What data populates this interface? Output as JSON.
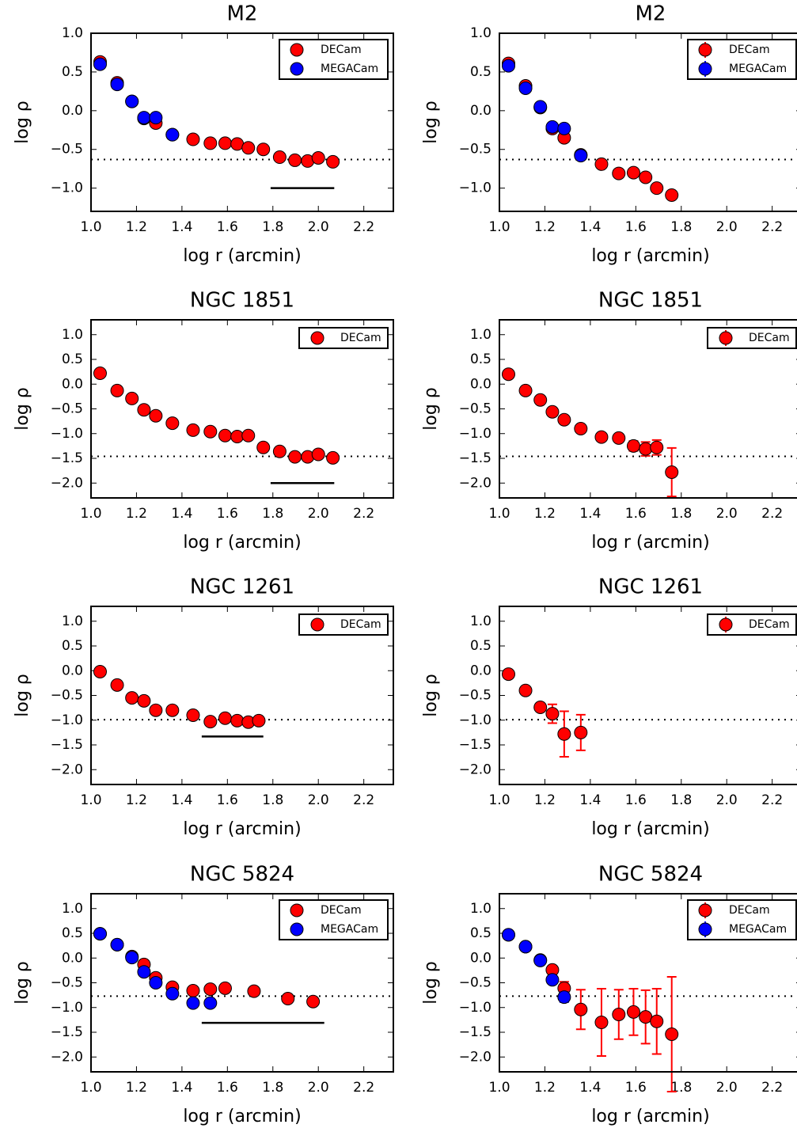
{
  "chart_data": [
    {
      "type": "scatter",
      "title": "M2",
      "xlabel": "log r (arcmin)",
      "ylabel": "log ρ",
      "xlim": [
        1.0,
        2.33
      ],
      "ylim": [
        -1.3,
        1.0
      ],
      "xticks": [
        {
          "value": 1,
          "label": "1.0"
        },
        {
          "value": 1.2,
          "label": "1.2"
        },
        {
          "value": 1.4,
          "label": "1.4"
        },
        {
          "value": 1.6,
          "label": "1.6"
        },
        {
          "value": 1.8,
          "label": "1.8"
        },
        {
          "value": 2,
          "label": "2.0"
        },
        {
          "value": 2.2,
          "label": "2.2"
        }
      ],
      "yticks": [
        {
          "value": 1,
          "label": "1.0"
        },
        {
          "value": 0.5,
          "label": "0.5"
        },
        {
          "value": 0,
          "label": "0.0"
        },
        {
          "value": -0.5,
          "label": "−0.5"
        },
        {
          "value": -1,
          "label": "−1.0"
        }
      ],
      "hline": -0.63,
      "segment": {
        "x": [
          1.79,
          2.07
        ],
        "y": -1.0
      },
      "legend": "upper right",
      "series": [
        {
          "name": "DECam",
          "color": "#ff0000",
          "x": [
            1.04,
            1.115,
            1.18,
            1.233,
            1.285,
            1.358,
            1.449,
            1.525,
            1.59,
            1.643,
            1.692,
            1.758,
            1.83,
            1.897,
            1.953,
            2.0,
            2.064
          ],
          "values": [
            0.63,
            0.36,
            0.12,
            -0.1,
            -0.16,
            -0.31,
            -0.37,
            -0.42,
            -0.42,
            -0.43,
            -0.48,
            -0.5,
            -0.6,
            -0.64,
            -0.65,
            -0.61,
            -0.66
          ]
        },
        {
          "name": "MEGACam",
          "color": "#0000ff",
          "x": [
            1.04,
            1.115,
            1.18,
            1.233,
            1.285,
            1.358
          ],
          "values": [
            0.6,
            0.34,
            0.12,
            -0.09,
            -0.09,
            -0.31
          ]
        }
      ]
    },
    {
      "type": "scatter",
      "title": "M2",
      "xlabel": "log r (arcmin)",
      "ylabel": "log ρ",
      "xlim": [
        1.0,
        2.33
      ],
      "ylim": [
        -1.3,
        1.0
      ],
      "xticks": [
        {
          "value": 1,
          "label": "1.0"
        },
        {
          "value": 1.2,
          "label": "1.2"
        },
        {
          "value": 1.4,
          "label": "1.4"
        },
        {
          "value": 1.6,
          "label": "1.6"
        },
        {
          "value": 1.8,
          "label": "1.8"
        },
        {
          "value": 2,
          "label": "2.0"
        },
        {
          "value": 2.2,
          "label": "2.2"
        }
      ],
      "yticks": [
        {
          "value": 1,
          "label": "1.0"
        },
        {
          "value": 0.5,
          "label": "0.5"
        },
        {
          "value": 0,
          "label": "0.0"
        },
        {
          "value": -0.5,
          "label": "−0.5"
        },
        {
          "value": -1,
          "label": "−1.0"
        }
      ],
      "hline": -0.63,
      "legend": "upper right",
      "series": [
        {
          "name": "DECam",
          "color": "#ff0000",
          "x": [
            1.04,
            1.115,
            1.18,
            1.233,
            1.285,
            1.358,
            1.449,
            1.525,
            1.59,
            1.643,
            1.692,
            1.758
          ],
          "values": [
            0.61,
            0.32,
            0.04,
            -0.23,
            -0.35,
            -0.57,
            -0.69,
            -0.81,
            -0.8,
            -0.86,
            -1.0,
            -1.09
          ],
          "errors": [
            0.02,
            0.02,
            0.02,
            0.02,
            0.02,
            0.02,
            0.02,
            0.02,
            0.02,
            0.02,
            0.02,
            0.02
          ]
        },
        {
          "name": "MEGACam",
          "color": "#0000ff",
          "x": [
            1.04,
            1.115,
            1.18,
            1.233,
            1.285,
            1.358
          ],
          "values": [
            0.58,
            0.29,
            0.05,
            -0.21,
            -0.23,
            -0.58
          ],
          "errors": [
            0.02,
            0.02,
            0.02,
            0.02,
            0.02,
            0.02
          ]
        }
      ]
    },
    {
      "type": "scatter",
      "title": "NGC 1851",
      "xlabel": "log r (arcmin)",
      "ylabel": "log ρ",
      "xlim": [
        1.0,
        2.33
      ],
      "ylim": [
        -2.3,
        1.3
      ],
      "xticks": [
        {
          "value": 1,
          "label": "1.0"
        },
        {
          "value": 1.2,
          "label": "1.2"
        },
        {
          "value": 1.4,
          "label": "1.4"
        },
        {
          "value": 1.6,
          "label": "1.6"
        },
        {
          "value": 1.8,
          "label": "1.8"
        },
        {
          "value": 2,
          "label": "2.0"
        },
        {
          "value": 2.2,
          "label": "2.2"
        }
      ],
      "yticks": [
        {
          "value": 1,
          "label": "1.0"
        },
        {
          "value": 0.5,
          "label": "0.5"
        },
        {
          "value": 0,
          "label": "0.0"
        },
        {
          "value": -0.5,
          "label": "−0.5"
        },
        {
          "value": -1,
          "label": "−1.0"
        },
        {
          "value": -1.5,
          "label": "−1.5"
        },
        {
          "value": -2,
          "label": "−2.0"
        }
      ],
      "hline": -1.46,
      "segment": {
        "x": [
          1.79,
          2.07
        ],
        "y": -2.0
      },
      "legend": "upper right",
      "series": [
        {
          "name": "DECam",
          "color": "#ff0000",
          "x": [
            1.04,
            1.115,
            1.18,
            1.233,
            1.285,
            1.358,
            1.449,
            1.525,
            1.59,
            1.643,
            1.692,
            1.758,
            1.83,
            1.897,
            1.953,
            2.0,
            2.064
          ],
          "values": [
            0.22,
            -0.13,
            -0.29,
            -0.52,
            -0.64,
            -0.79,
            -0.93,
            -0.96,
            -1.04,
            -1.06,
            -1.04,
            -1.28,
            -1.36,
            -1.47,
            -1.47,
            -1.42,
            -1.49
          ]
        }
      ]
    },
    {
      "type": "scatter",
      "title": "NGC 1851",
      "xlabel": "log r (arcmin)",
      "ylabel": "log ρ",
      "xlim": [
        1.0,
        2.33
      ],
      "ylim": [
        -2.3,
        1.3
      ],
      "xticks": [
        {
          "value": 1,
          "label": "1.0"
        },
        {
          "value": 1.2,
          "label": "1.2"
        },
        {
          "value": 1.4,
          "label": "1.4"
        },
        {
          "value": 1.6,
          "label": "1.6"
        },
        {
          "value": 1.8,
          "label": "1.8"
        },
        {
          "value": 2,
          "label": "2.0"
        },
        {
          "value": 2.2,
          "label": "2.2"
        }
      ],
      "yticks": [
        {
          "value": 1,
          "label": "1.0"
        },
        {
          "value": 0.5,
          "label": "0.5"
        },
        {
          "value": 0,
          "label": "0.0"
        },
        {
          "value": -0.5,
          "label": "−0.5"
        },
        {
          "value": -1,
          "label": "−1.0"
        },
        {
          "value": -1.5,
          "label": "−1.5"
        },
        {
          "value": -2,
          "label": "−2.0"
        }
      ],
      "hline": -1.46,
      "legend": "upper right",
      "series": [
        {
          "name": "DECam",
          "color": "#ff0000",
          "x": [
            1.04,
            1.115,
            1.18,
            1.233,
            1.285,
            1.358,
            1.449,
            1.525,
            1.59,
            1.643,
            1.692,
            1.758
          ],
          "values": [
            0.2,
            -0.13,
            -0.32,
            -0.56,
            -0.72,
            -0.9,
            -1.07,
            -1.09,
            -1.25,
            -1.31,
            -1.28,
            -1.78
          ],
          "errors": [
            0.02,
            0.02,
            0.02,
            0.02,
            0.02,
            0.02,
            0.03,
            0.05,
            0.1,
            0.14,
            0.15,
            0.49
          ]
        }
      ]
    },
    {
      "type": "scatter",
      "title": "NGC 1261",
      "xlabel": "log r (arcmin)",
      "ylabel": "log ρ",
      "xlim": [
        1.0,
        2.33
      ],
      "ylim": [
        -2.3,
        1.3
      ],
      "xticks": [
        {
          "value": 1,
          "label": "1.0"
        },
        {
          "value": 1.2,
          "label": "1.2"
        },
        {
          "value": 1.4,
          "label": "1.4"
        },
        {
          "value": 1.6,
          "label": "1.6"
        },
        {
          "value": 1.8,
          "label": "1.8"
        },
        {
          "value": 2,
          "label": "2.0"
        },
        {
          "value": 2.2,
          "label": "2.2"
        }
      ],
      "yticks": [
        {
          "value": 1,
          "label": "1.0"
        },
        {
          "value": 0.5,
          "label": "0.5"
        },
        {
          "value": 0,
          "label": "0.0"
        },
        {
          "value": -0.5,
          "label": "−0.5"
        },
        {
          "value": -1,
          "label": "−1.0"
        },
        {
          "value": -1.5,
          "label": "−1.5"
        },
        {
          "value": -2,
          "label": "−2.0"
        }
      ],
      "hline": -0.99,
      "segment": {
        "x": [
          1.487,
          1.758
        ],
        "y": -1.33
      },
      "legend": "upper right",
      "series": [
        {
          "name": "DECam",
          "color": "#ff0000",
          "x": [
            1.04,
            1.115,
            1.18,
            1.233,
            1.285,
            1.358,
            1.449,
            1.525,
            1.59,
            1.643,
            1.692,
            1.738
          ],
          "values": [
            -0.02,
            -0.29,
            -0.55,
            -0.61,
            -0.8,
            -0.8,
            -0.9,
            -1.03,
            -0.96,
            -1.01,
            -1.04,
            -1.01
          ]
        }
      ]
    },
    {
      "type": "scatter",
      "title": "NGC 1261",
      "xlabel": "log r (arcmin)",
      "ylabel": "log ρ",
      "xlim": [
        1.0,
        2.33
      ],
      "ylim": [
        -2.3,
        1.3
      ],
      "xticks": [
        {
          "value": 1,
          "label": "1.0"
        },
        {
          "value": 1.2,
          "label": "1.2"
        },
        {
          "value": 1.4,
          "label": "1.4"
        },
        {
          "value": 1.6,
          "label": "1.6"
        },
        {
          "value": 1.8,
          "label": "1.8"
        },
        {
          "value": 2,
          "label": "2.0"
        },
        {
          "value": 2.2,
          "label": "2.2"
        }
      ],
      "yticks": [
        {
          "value": 1,
          "label": "1.0"
        },
        {
          "value": 0.5,
          "label": "0.5"
        },
        {
          "value": 0,
          "label": "0.0"
        },
        {
          "value": -0.5,
          "label": "−0.5"
        },
        {
          "value": -1,
          "label": "−1.0"
        },
        {
          "value": -1.5,
          "label": "−1.5"
        },
        {
          "value": -2,
          "label": "−2.0"
        }
      ],
      "hline": -0.99,
      "legend": "upper right",
      "series": [
        {
          "name": "DECam",
          "color": "#ff0000",
          "x": [
            1.04,
            1.115,
            1.18,
            1.233,
            1.285,
            1.358
          ],
          "values": [
            -0.07,
            -0.4,
            -0.74,
            -0.87,
            -1.28,
            -1.25
          ],
          "errors": [
            0.02,
            0.03,
            0.08,
            0.19,
            0.46,
            0.36
          ]
        }
      ]
    },
    {
      "type": "scatter",
      "title": "NGC 5824",
      "xlabel": "log r (arcmin)",
      "ylabel": "log ρ",
      "xlim": [
        1.0,
        2.33
      ],
      "ylim": [
        -2.3,
        1.3
      ],
      "xticks": [
        {
          "value": 1,
          "label": "1.0"
        },
        {
          "value": 1.2,
          "label": "1.2"
        },
        {
          "value": 1.4,
          "label": "1.4"
        },
        {
          "value": 1.6,
          "label": "1.6"
        },
        {
          "value": 1.8,
          "label": "1.8"
        },
        {
          "value": 2,
          "label": "2.0"
        },
        {
          "value": 2.2,
          "label": "2.2"
        }
      ],
      "yticks": [
        {
          "value": 1,
          "label": "1.0"
        },
        {
          "value": 0.5,
          "label": "0.5"
        },
        {
          "value": 0,
          "label": "0.0"
        },
        {
          "value": -0.5,
          "label": "−0.5"
        },
        {
          "value": -1,
          "label": "−1.0"
        },
        {
          "value": -1.5,
          "label": "−1.5"
        },
        {
          "value": -2,
          "label": "−2.0"
        }
      ],
      "hline": -0.77,
      "segment": {
        "x": [
          1.487,
          2.026
        ],
        "y": -1.31
      },
      "legend": "upper right",
      "series": [
        {
          "name": "DECam",
          "color": "#ff0000",
          "x": [
            1.04,
            1.115,
            1.18,
            1.233,
            1.285,
            1.358,
            1.449,
            1.525,
            1.59,
            1.717,
            1.866,
            1.977
          ],
          "values": [
            0.49,
            0.27,
            0.03,
            -0.13,
            -0.4,
            -0.59,
            -0.66,
            -0.63,
            -0.61,
            -0.67,
            -0.82,
            -0.88
          ]
        },
        {
          "name": "MEGACam",
          "color": "#0000ff",
          "x": [
            1.04,
            1.115,
            1.18,
            1.233,
            1.285,
            1.358,
            1.449,
            1.525
          ],
          "values": [
            0.49,
            0.27,
            0.01,
            -0.28,
            -0.5,
            -0.72,
            -0.91,
            -0.91
          ]
        }
      ]
    },
    {
      "type": "scatter",
      "title": "NGC 5824",
      "xlabel": "log r (arcmin)",
      "ylabel": "log ρ",
      "xlim": [
        1.0,
        2.33
      ],
      "ylim": [
        -2.3,
        1.3
      ],
      "xticks": [
        {
          "value": 1,
          "label": "1.0"
        },
        {
          "value": 1.2,
          "label": "1.2"
        },
        {
          "value": 1.4,
          "label": "1.4"
        },
        {
          "value": 1.6,
          "label": "1.6"
        },
        {
          "value": 1.8,
          "label": "1.8"
        },
        {
          "value": 2,
          "label": "2.0"
        },
        {
          "value": 2.2,
          "label": "2.2"
        }
      ],
      "yticks": [
        {
          "value": 1,
          "label": "1.0"
        },
        {
          "value": 0.5,
          "label": "0.5"
        },
        {
          "value": 0,
          "label": "0.0"
        },
        {
          "value": -0.5,
          "label": "−0.5"
        },
        {
          "value": -1,
          "label": "−1.0"
        },
        {
          "value": -1.5,
          "label": "−1.5"
        },
        {
          "value": -2,
          "label": "−2.0"
        }
      ],
      "hline": -0.77,
      "legend": "upper right",
      "series": [
        {
          "name": "DECam",
          "color": "#ff0000",
          "x": [
            1.04,
            1.115,
            1.18,
            1.233,
            1.285,
            1.358,
            1.449,
            1.525,
            1.59,
            1.643,
            1.692,
            1.758
          ],
          "values": [
            0.47,
            0.23,
            -0.04,
            -0.24,
            -0.61,
            -1.04,
            -1.3,
            -1.14,
            -1.09,
            -1.19,
            -1.28,
            -1.54
          ],
          "errors": [
            0.02,
            0.02,
            0.03,
            0.06,
            0.13,
            0.4,
            0.68,
            0.5,
            0.47,
            0.54,
            0.66,
            1.16
          ]
        },
        {
          "name": "MEGACam",
          "color": "#0000ff",
          "x": [
            1.04,
            1.115,
            1.18,
            1.233,
            1.285
          ],
          "values": [
            0.47,
            0.23,
            -0.05,
            -0.44,
            -0.79
          ],
          "errors": [
            0.02,
            0.02,
            0.03,
            0.04,
            0.1
          ]
        }
      ]
    }
  ]
}
